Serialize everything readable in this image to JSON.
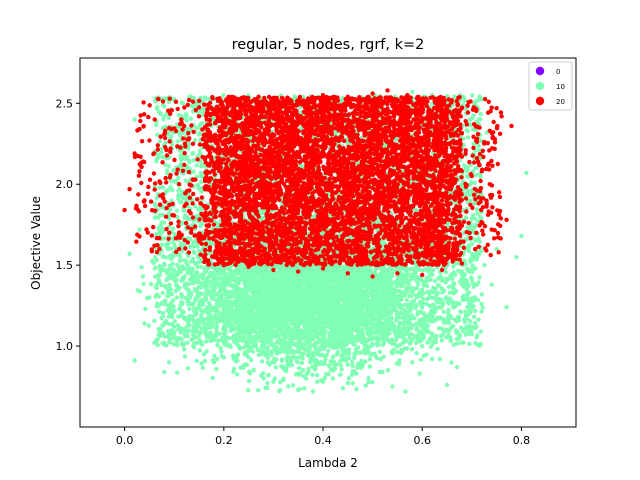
{
  "chart_data": {
    "type": "scatter",
    "title": "regular, 5 nodes, rgrf, k=2",
    "xlabel": "Lambda 2",
    "ylabel": "Objective Value",
    "xlim": [
      -0.09,
      0.91
    ],
    "ylim": [
      0.5,
      2.78
    ],
    "xticks": [
      0.0,
      0.2,
      0.4,
      0.6,
      0.8
    ],
    "xtick_labels": [
      "0.0",
      "0.2",
      "0.4",
      "0.6",
      "0.8"
    ],
    "yticks": [
      1.0,
      1.5,
      2.0,
      2.5
    ],
    "ytick_labels": [
      "1.0",
      "1.5",
      "2.0",
      "2.5"
    ],
    "grid": false,
    "legend_placement": "top-right",
    "series": [
      {
        "name": "0",
        "color": "#8000ff",
        "points": []
      },
      {
        "name": "10",
        "color": "#80ffb4",
        "cloud": {
          "x_range": [
            0.02,
            0.81
          ],
          "y_range": [
            0.71,
            2.57
          ],
          "center": [
            0.4,
            1.55
          ],
          "approx_count": 9000
        },
        "points": [
          [
            0.03,
            1.72
          ],
          [
            0.04,
            1.14
          ],
          [
            0.05,
            1.3
          ],
          [
            0.06,
            1.02
          ],
          [
            0.07,
            1.25
          ],
          [
            0.08,
            0.84
          ],
          [
            0.1,
            1.12
          ],
          [
            0.12,
            0.98
          ],
          [
            0.14,
            1.05
          ],
          [
            0.16,
            0.95
          ],
          [
            0.18,
            0.9
          ],
          [
            0.2,
            0.93
          ],
          [
            0.22,
            0.92
          ],
          [
            0.24,
            0.88
          ],
          [
            0.26,
            0.85
          ],
          [
            0.28,
            0.8
          ],
          [
            0.3,
            0.78
          ],
          [
            0.33,
            0.75
          ],
          [
            0.35,
            0.73
          ],
          [
            0.38,
            0.72
          ],
          [
            0.4,
            0.78
          ],
          [
            0.42,
            0.8
          ],
          [
            0.44,
            0.74
          ],
          [
            0.46,
            0.77
          ],
          [
            0.48,
            0.88
          ],
          [
            0.5,
            0.95
          ],
          [
            0.52,
            0.84
          ],
          [
            0.54,
            0.75
          ],
          [
            0.56,
            0.97
          ],
          [
            0.58,
            0.9
          ],
          [
            0.6,
            1.0
          ],
          [
            0.62,
            0.92
          ],
          [
            0.65,
            0.76
          ],
          [
            0.67,
            0.87
          ],
          [
            0.7,
            1.12
          ],
          [
            0.72,
            1.32
          ],
          [
            0.74,
            1.38
          ],
          [
            0.75,
            1.6
          ],
          [
            0.77,
            1.24
          ],
          [
            0.79,
            1.55
          ],
          [
            0.81,
            2.07
          ],
          [
            0.8,
            1.68
          ],
          [
            0.73,
            2.32
          ],
          [
            0.71,
            2.25
          ],
          [
            0.68,
            2.47
          ],
          [
            0.62,
            2.55
          ],
          [
            0.58,
            2.57
          ],
          [
            0.5,
            2.56
          ],
          [
            0.44,
            2.48
          ],
          [
            0.38,
            2.46
          ],
          [
            0.28,
            2.47
          ],
          [
            0.22,
            2.5
          ],
          [
            0.15,
            2.35
          ],
          [
            0.1,
            2.32
          ],
          [
            0.02,
            2.4
          ],
          [
            0.01,
            1.57
          ],
          [
            0.02,
            0.91
          ]
        ]
      },
      {
        "name": "20",
        "color": "#ff0000",
        "cloud": {
          "x_range": [
            0.0,
            0.78
          ],
          "y_range": [
            1.43,
            2.58
          ],
          "center": [
            0.45,
            2.0
          ],
          "approx_count": 7000
        },
        "points": [
          [
            0.0,
            1.84
          ],
          [
            0.01,
            1.97
          ],
          [
            0.02,
            2.19
          ],
          [
            0.03,
            2.08
          ],
          [
            0.04,
            1.9
          ],
          [
            0.05,
            2.27
          ],
          [
            0.06,
            1.62
          ],
          [
            0.07,
            1.6
          ],
          [
            0.08,
            2.31
          ],
          [
            0.09,
            1.7
          ],
          [
            0.12,
            2.36
          ],
          [
            0.13,
            2.52
          ],
          [
            0.15,
            2.42
          ],
          [
            0.18,
            2.45
          ],
          [
            0.22,
            2.48
          ],
          [
            0.27,
            2.54
          ],
          [
            0.33,
            2.53
          ],
          [
            0.4,
            2.55
          ],
          [
            0.45,
            2.54
          ],
          [
            0.5,
            2.56
          ],
          [
            0.53,
            2.58
          ],
          [
            0.57,
            2.55
          ],
          [
            0.63,
            2.52
          ],
          [
            0.67,
            2.45
          ],
          [
            0.69,
            2.37
          ],
          [
            0.7,
            2.05
          ],
          [
            0.72,
            2.08
          ],
          [
            0.73,
            1.88
          ],
          [
            0.74,
            1.72
          ],
          [
            0.75,
            2.47
          ],
          [
            0.76,
            2.42
          ],
          [
            0.77,
            1.78
          ],
          [
            0.78,
            2.36
          ],
          [
            0.68,
            1.51
          ],
          [
            0.64,
            1.47
          ],
          [
            0.6,
            1.44
          ],
          [
            0.55,
            1.45
          ],
          [
            0.5,
            1.43
          ],
          [
            0.45,
            1.45
          ],
          [
            0.4,
            1.48
          ],
          [
            0.35,
            1.46
          ],
          [
            0.3,
            1.47
          ],
          [
            0.25,
            1.49
          ],
          [
            0.2,
            1.5
          ],
          [
            0.16,
            1.55
          ],
          [
            0.11,
            1.6
          ]
        ]
      }
    ]
  }
}
